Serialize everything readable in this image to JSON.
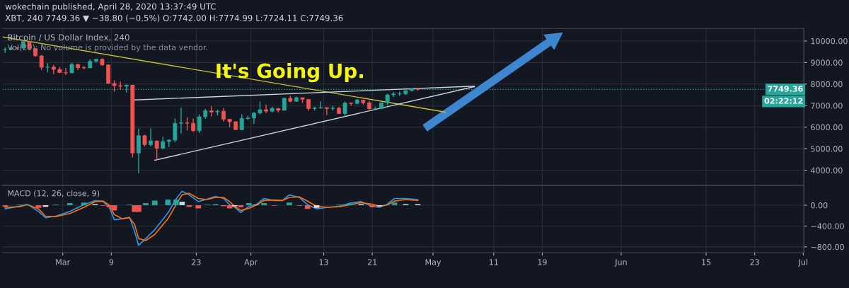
{
  "chart_data": [
    {
      "type": "candlestick",
      "title": "wokechain published, April 28, 2020 13:37:49 UTC",
      "subtitle": "XBT, 240 7749.36 ▼ −38.80 (−0.5%) O:7742.00 H:7774.99 L:7724.11 C:7749.36",
      "annotations": [
        "Bitcoin / US Dollar Index, 240",
        "Vol(20): No volume is provided by the data vendor.",
        "It's Going Up.",
        "02:22:12"
      ],
      "x": [
        "2020-02-20T12:00",
        "2020-02-21T12:00",
        "2020-02-22T12:00",
        "2020-02-23T12:00",
        "2020-02-24T12:00",
        "2020-02-25T12:00",
        "2020-02-26T12:00",
        "2020-02-27T12:00",
        "2020-02-28T12:00",
        "2020-02-29T12:00",
        "2020-03-01T12:00",
        "2020-03-02T12:00",
        "2020-03-03T12:00",
        "2020-03-04T12:00",
        "2020-03-05T12:00",
        "2020-03-06T12:00",
        "2020-03-07T12:00",
        "2020-03-08T12:00",
        "2020-03-09T12:00",
        "2020-03-10T12:00",
        "2020-03-11T12:00",
        "2020-03-12T12:00",
        "2020-03-13T12:00",
        "2020-03-14T12:00",
        "2020-03-15T12:00",
        "2020-03-16T12:00",
        "2020-03-17T12:00",
        "2020-03-18T12:00",
        "2020-03-19T12:00",
        "2020-03-20T12:00",
        "2020-03-21T12:00",
        "2020-03-22T12:00",
        "2020-03-23T12:00",
        "2020-03-24T12:00",
        "2020-03-25T12:00",
        "2020-03-26T12:00",
        "2020-03-27T12:00",
        "2020-03-28T12:00",
        "2020-03-29T12:00",
        "2020-03-30T12:00",
        "2020-03-31T12:00",
        "2020-04-01T12:00",
        "2020-04-02T12:00",
        "2020-04-03T12:00",
        "2020-04-04T12:00",
        "2020-04-05T12:00",
        "2020-04-06T12:00",
        "2020-04-07T12:00",
        "2020-04-08T12:00",
        "2020-04-09T12:00",
        "2020-04-10T12:00",
        "2020-04-11T12:00",
        "2020-04-12T12:00",
        "2020-04-13T12:00",
        "2020-04-14T12:00",
        "2020-04-15T12:00",
        "2020-04-16T12:00",
        "2020-04-17T12:00",
        "2020-04-18T12:00",
        "2020-04-19T12:00",
        "2020-04-20T12:00",
        "2020-04-21T12:00",
        "2020-04-22T12:00",
        "2020-04-23T12:00",
        "2020-04-24T12:00",
        "2020-04-25T12:00",
        "2020-04-26T12:00",
        "2020-04-27T12:00",
        "2020-04-28T12:00"
      ],
      "ohlc": [
        [
          9600,
          9700,
          9450,
          9600
        ],
        [
          9600,
          9780,
          9570,
          9690
        ],
        [
          9690,
          9720,
          9580,
          9670
        ],
        [
          9670,
          9990,
          9660,
          9970
        ],
        [
          9970,
          10000,
          9580,
          9650
        ],
        [
          9650,
          9680,
          9270,
          9310
        ],
        [
          9310,
          9360,
          8650,
          8780
        ],
        [
          8780,
          8970,
          8550,
          8790
        ],
        [
          8790,
          8900,
          8450,
          8680
        ],
        [
          8680,
          8800,
          8520,
          8530
        ],
        [
          8530,
          8750,
          8420,
          8520
        ],
        [
          8520,
          8980,
          8500,
          8910
        ],
        [
          8910,
          8940,
          8650,
          8760
        ],
        [
          8760,
          8840,
          8680,
          8750
        ],
        [
          8750,
          9160,
          8740,
          9060
        ],
        [
          9060,
          9180,
          9000,
          9150
        ],
        [
          9150,
          9200,
          8850,
          8890
        ],
        [
          8890,
          8900,
          8020,
          8030
        ],
        [
          8030,
          8180,
          7650,
          7930
        ],
        [
          7930,
          8120,
          7730,
          7900
        ],
        [
          7900,
          7980,
          7600,
          7950
        ],
        [
          7950,
          7970,
          4600,
          4800
        ],
        [
          4800,
          5950,
          3850,
          5600
        ],
        [
          5600,
          5650,
          5100,
          5180
        ],
        [
          5180,
          5950,
          5100,
          5360
        ],
        [
          5360,
          5380,
          4450,
          5020
        ],
        [
          5020,
          5550,
          4980,
          5330
        ],
        [
          5330,
          5440,
          5080,
          5400
        ],
        [
          5400,
          6400,
          5300,
          6180
        ],
        [
          6180,
          6900,
          5700,
          6200
        ],
        [
          6200,
          6450,
          5850,
          6180
        ],
        [
          6180,
          6400,
          5780,
          5830
        ],
        [
          5830,
          6600,
          5730,
          6480
        ],
        [
          6480,
          6850,
          6380,
          6760
        ],
        [
          6760,
          6980,
          6500,
          6700
        ],
        [
          6700,
          6800,
          6550,
          6740
        ],
        [
          6740,
          6880,
          6260,
          6370
        ],
        [
          6370,
          6380,
          6000,
          6250
        ],
        [
          6250,
          6270,
          5870,
          5880
        ],
        [
          5880,
          6600,
          5860,
          6400
        ],
        [
          6400,
          6530,
          6340,
          6420
        ],
        [
          6420,
          6700,
          6150,
          6650
        ],
        [
          6650,
          7200,
          6600,
          6810
        ],
        [
          6810,
          7050,
          6650,
          6740
        ],
        [
          6740,
          6950,
          6680,
          6870
        ],
        [
          6870,
          6880,
          6690,
          6780
        ],
        [
          6780,
          7380,
          6780,
          7340
        ],
        [
          7340,
          7460,
          7150,
          7200
        ],
        [
          7200,
          7420,
          7180,
          7370
        ],
        [
          7370,
          7380,
          7120,
          7290
        ],
        [
          7290,
          7300,
          6750,
          6860
        ],
        [
          6860,
          6950,
          6780,
          6890
        ],
        [
          6890,
          7200,
          6860,
          6910
        ],
        [
          6910,
          6920,
          6560,
          6860
        ],
        [
          6860,
          6990,
          6780,
          6880
        ],
        [
          6880,
          6940,
          6620,
          6630
        ],
        [
          6630,
          7200,
          6480,
          7120
        ],
        [
          7120,
          7150,
          6990,
          7100
        ],
        [
          7100,
          7300,
          7070,
          7260
        ],
        [
          7260,
          7270,
          7050,
          7130
        ],
        [
          7130,
          7210,
          6830,
          6850
        ],
        [
          6850,
          6950,
          6780,
          6860
        ],
        [
          6860,
          7150,
          6850,
          7130
        ],
        [
          7130,
          7550,
          7020,
          7500
        ],
        [
          7500,
          7620,
          7400,
          7540
        ],
        [
          7540,
          7660,
          7450,
          7550
        ],
        [
          7550,
          7720,
          7500,
          7700
        ],
        [
          7700,
          7790,
          7660,
          7790
        ],
        [
          7790,
          7810,
          7690,
          7749.36
        ]
      ],
      "series": [
        {
          "type": "line",
          "x": [
            "2020-02-20T02:00",
            "2020-05-03T00:00"
          ],
          "values": [
            10190,
            6700
          ],
          "color": "#c9c12e"
        },
        {
          "type": "line",
          "x": [
            "2020-03-12T20:00",
            "2020-05-07T20:00"
          ],
          "values": [
            7260,
            7900
          ],
          "color": "#d1d4dc"
        },
        {
          "type": "line",
          "x": [
            "2020-03-16T04:00",
            "2020-05-07T20:00"
          ],
          "values": [
            4460,
            7880
          ],
          "color": "#d1d4dc"
        }
      ],
      "ref_lines": [
        {
          "axis": "y",
          "value": 7749.36,
          "label": "7749.36",
          "color": "#26a69a",
          "line_style": "dotted"
        }
      ],
      "xlim": [
        "2020-02-20T02:00",
        "2020-07-01T03:00"
      ],
      "xticks": [
        {
          "value": "2020-03-01",
          "label": null
        },
        {
          "value": "2020-03-09",
          "label": null
        },
        {
          "value": "2020-03-23",
          "label": null
        },
        {
          "value": "2020-04-01",
          "label": null
        },
        {
          "value": "2020-04-13",
          "label": null
        },
        {
          "value": "2020-04-21",
          "label": null
        },
        {
          "value": "2020-05-01",
          "label": null
        },
        {
          "value": "2020-05-11",
          "label": null
        },
        {
          "value": "2020-05-19",
          "label": null
        },
        {
          "value": "2020-06-01",
          "label": null
        },
        {
          "value": "2020-06-15",
          "label": null
        },
        {
          "value": "2020-06-23",
          "label": null
        },
        {
          "value": "2020-07-01",
          "label": null
        }
      ],
      "ylim": [
        3290,
        10580
      ],
      "yticks": [
        {
          "value": 4000,
          "label": "4000.00"
        },
        {
          "value": 5000,
          "label": "5000.00"
        },
        {
          "value": 6000,
          "label": "6000.00"
        },
        {
          "value": 7000,
          "label": "7000.00"
        },
        {
          "value": 8000,
          "label": "8000.00"
        },
        {
          "value": 9000,
          "label": "9000.00"
        },
        {
          "value": 10000,
          "label": "10000.00"
        }
      ],
      "tick_labels": "y",
      "grid": true,
      "legend": false
    },
    {
      "type": "line",
      "title": "MACD (12, 26, close, 9)",
      "x": [
        "2020-02-20T12:00",
        "2020-02-22T20:00",
        "2020-02-24T04:00",
        "2020-02-26T00:00",
        "2020-02-27T04:00",
        "2020-02-28T20:00",
        "2020-03-02T04:00",
        "2020-03-04T12:00",
        "2020-03-06T08:00",
        "2020-03-07T16:00",
        "2020-03-08T16:00",
        "2020-03-09T12:00",
        "2020-03-10T20:00",
        "2020-03-12T00:00",
        "2020-03-12T20:00",
        "2020-03-13T12:00",
        "2020-03-14T16:00",
        "2020-03-16T04:00",
        "2020-03-18T08:00",
        "2020-03-19T16:00",
        "2020-03-20T16:00",
        "2020-03-21T20:00",
        "2020-03-23T08:00",
        "2020-03-24T20:00",
        "2020-03-26T04:00",
        "2020-03-27T12:00",
        "2020-03-28T12:00",
        "2020-03-29T08:00",
        "2020-03-30T08:00",
        "2020-03-31T16:00",
        "2020-04-01T20:00",
        "2020-04-03T04:00",
        "2020-04-04T20:00",
        "2020-04-06T04:00",
        "2020-04-07T08:00",
        "2020-04-09T00:00",
        "2020-04-10T08:00",
        "2020-04-11T20:00",
        "2020-04-13T16:00",
        "2020-04-15T12:00",
        "2020-04-17T08:00",
        "2020-04-19T04:00",
        "2020-04-21T00:00",
        "2020-04-22T04:00",
        "2020-04-23T08:00",
        "2020-04-24T16:00",
        "2020-04-26T12:00",
        "2020-04-28T12:00"
      ],
      "series": [
        {
          "type": "bar",
          "values": [
            -30,
            10,
            10,
            -50,
            -30,
            10,
            40,
            50,
            20,
            -10,
            -40,
            -100,
            0,
            10,
            -130,
            -130,
            40,
            90,
            110,
            110,
            70,
            -30,
            -60,
            10,
            20,
            -20,
            -60,
            -20,
            -40,
            40,
            10,
            40,
            -10,
            0,
            50,
            -10,
            -70,
            -50,
            0,
            10,
            30,
            20,
            -40,
            -20,
            10,
            50,
            20,
            20
          ],
          "colors": [
            "#ef5350",
            "#26a69a",
            "#26a69a",
            "#ef5350",
            "#ffcdd2",
            "#26a69a",
            "#26a69a",
            "#26a69a",
            "#b2dfdb",
            "#ef5350",
            "#ef5350",
            "#ef5350",
            "#ffcdd2",
            "#26a69a",
            "#ef5350",
            "#ef5350",
            "#26a69a",
            "#26a69a",
            "#26a69a",
            "#26a69a",
            "#b2dfdb",
            "#ef5350",
            "#ef5350",
            "#26a69a",
            "#26a69a",
            "#ef5350",
            "#ef5350",
            "#ffcdd2",
            "#ef5350",
            "#26a69a",
            "#b2dfdb",
            "#26a69a",
            "#ef5350",
            "#ffcdd2",
            "#26a69a",
            "#ef5350",
            "#ef5350",
            "#ffcdd2",
            "#ffcdd2",
            "#26a69a",
            "#26a69a",
            "#b2dfdb",
            "#ef5350",
            "#ffcdd2",
            "#26a69a",
            "#26a69a",
            "#b2dfdb",
            "#b2dfdb"
          ]
        },
        {
          "type": "line",
          "color": "#2196f3",
          "values": [
            -70,
            -20,
            20,
            -120,
            -240,
            -210,
            -120,
            10,
            90,
            70,
            -40,
            -280,
            -260,
            -230,
            -500,
            -770,
            -640,
            -470,
            -150,
            120,
            270,
            200,
            70,
            120,
            170,
            130,
            10,
            -40,
            -140,
            -20,
            10,
            130,
            90,
            90,
            200,
            150,
            10,
            -70,
            -40,
            -20,
            40,
            70,
            -20,
            -40,
            10,
            130,
            130,
            110
          ]
        },
        {
          "type": "line",
          "color": "#ff6d00",
          "values": [
            -40,
            -30,
            10,
            -70,
            -210,
            -220,
            -160,
            -40,
            70,
            80,
            0,
            -180,
            -260,
            -240,
            -370,
            -640,
            -680,
            -560,
            -260,
            10,
            200,
            230,
            130,
            110,
            150,
            150,
            70,
            -20,
            -100,
            -60,
            0,
            90,
            100,
            90,
            150,
            160,
            80,
            -20,
            -40,
            -30,
            10,
            50,
            20,
            -20,
            0,
            80,
            110,
            90
          ]
        }
      ],
      "xlim": [
        "2020-02-20T02:00",
        "2020-07-01T03:00"
      ],
      "xticks": [
        {
          "value": "2020-03-01",
          "label": "Mar"
        },
        {
          "value": "2020-03-09",
          "label": "9"
        },
        {
          "value": "2020-03-23",
          "label": "23"
        },
        {
          "value": "2020-04-01",
          "label": "Apr"
        },
        {
          "value": "2020-04-13",
          "label": "13"
        },
        {
          "value": "2020-04-21",
          "label": "21"
        },
        {
          "value": "2020-05-01",
          "label": "May"
        },
        {
          "value": "2020-05-11",
          "label": "11"
        },
        {
          "value": "2020-05-19",
          "label": "19"
        },
        {
          "value": "2020-06-01",
          "label": "Jun"
        },
        {
          "value": "2020-06-15",
          "label": "15"
        },
        {
          "value": "2020-06-23",
          "label": "23"
        },
        {
          "value": "2020-07-01",
          "label": "Jul"
        }
      ],
      "ylim": [
        -910,
        380
      ],
      "yticks": [
        {
          "value": 0,
          "label": "0.00"
        },
        {
          "value": -400,
          "label": "−400.00"
        },
        {
          "value": -800,
          "label": "−800.00"
        }
      ],
      "grid": true,
      "legend": false
    }
  ]
}
